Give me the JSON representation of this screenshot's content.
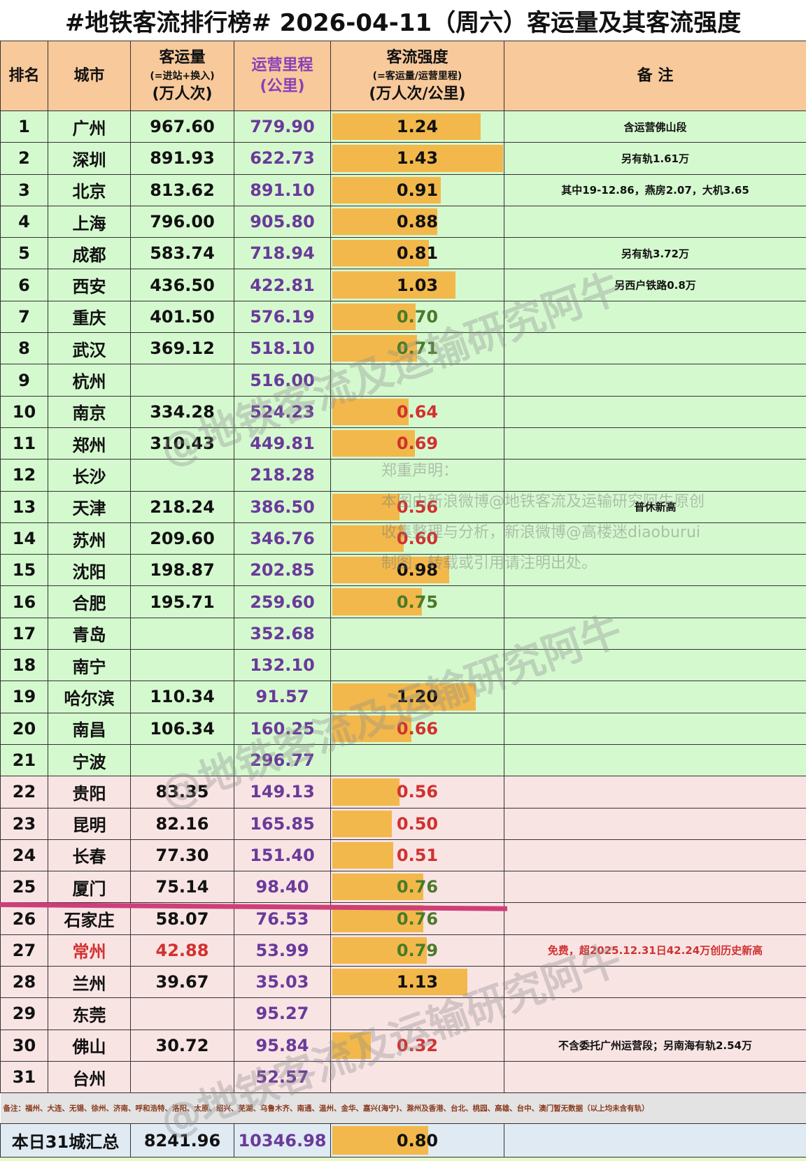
{
  "title": "#地铁客流排行榜# 2026-04-11（周六）客运量及其客流强度",
  "headers": {
    "rank": "排名",
    "city": "城市",
    "volume_main": "客运量",
    "volume_sub": "(=进站+换入)",
    "volume_unit": "(万人次)",
    "length_main": "运营里程",
    "length_unit": "(公里)",
    "intensity_main": "客流强度",
    "intensity_sub": "(=客运量/运营里程)",
    "intensity_unit": "(万人次/公里)",
    "note": "备  注"
  },
  "rows": [
    {
      "rank": "1",
      "city": "广州",
      "volume": "967.60",
      "length": "779.90",
      "intensity": "1.24",
      "intensity_color": "black",
      "note": "含运营佛山段",
      "group": "green"
    },
    {
      "rank": "2",
      "city": "深圳",
      "volume": "891.93",
      "length": "622.73",
      "intensity": "1.43",
      "intensity_color": "black",
      "note": "另有轨1.61万",
      "group": "green"
    },
    {
      "rank": "3",
      "city": "北京",
      "volume": "813.62",
      "length": "891.10",
      "intensity": "0.91",
      "intensity_color": "black",
      "note": "其中19-12.86，燕房2.07，大机3.65",
      "group": "green"
    },
    {
      "rank": "4",
      "city": "上海",
      "volume": "796.00",
      "length": "905.80",
      "intensity": "0.88",
      "intensity_color": "black",
      "note": "",
      "group": "green"
    },
    {
      "rank": "5",
      "city": "成都",
      "volume": "583.74",
      "length": "718.94",
      "intensity": "0.81",
      "intensity_color": "black",
      "note": "另有轨3.72万",
      "group": "green"
    },
    {
      "rank": "6",
      "city": "西安",
      "volume": "436.50",
      "length": "422.81",
      "intensity": "1.03",
      "intensity_color": "black",
      "note": "另西户铁路0.8万",
      "group": "green"
    },
    {
      "rank": "7",
      "city": "重庆",
      "volume": "401.50",
      "length": "576.19",
      "intensity": "0.70",
      "intensity_color": "green",
      "note": "",
      "group": "green"
    },
    {
      "rank": "8",
      "city": "武汉",
      "volume": "369.12",
      "length": "518.10",
      "intensity": "0.71",
      "intensity_color": "green",
      "note": "",
      "group": "green"
    },
    {
      "rank": "9",
      "city": "杭州",
      "volume": "",
      "length": "516.00",
      "intensity": "",
      "intensity_color": "black",
      "note": "",
      "group": "green"
    },
    {
      "rank": "10",
      "city": "南京",
      "volume": "334.28",
      "length": "524.23",
      "intensity": "0.64",
      "intensity_color": "red",
      "note": "",
      "group": "green"
    },
    {
      "rank": "11",
      "city": "郑州",
      "volume": "310.43",
      "length": "449.81",
      "intensity": "0.69",
      "intensity_color": "red",
      "note": "",
      "group": "green"
    },
    {
      "rank": "12",
      "city": "长沙",
      "volume": "",
      "length": "218.28",
      "intensity": "",
      "intensity_color": "black",
      "note": "",
      "group": "green"
    },
    {
      "rank": "13",
      "city": "天津",
      "volume": "218.24",
      "length": "386.50",
      "intensity": "0.56",
      "intensity_color": "red",
      "note": "普休新高",
      "group": "green"
    },
    {
      "rank": "14",
      "city": "苏州",
      "volume": "209.60",
      "length": "346.76",
      "intensity": "0.60",
      "intensity_color": "red",
      "note": "",
      "group": "green"
    },
    {
      "rank": "15",
      "city": "沈阳",
      "volume": "198.87",
      "length": "202.85",
      "intensity": "0.98",
      "intensity_color": "black",
      "note": "",
      "group": "green"
    },
    {
      "rank": "16",
      "city": "合肥",
      "volume": "195.71",
      "length": "259.60",
      "intensity": "0.75",
      "intensity_color": "green",
      "note": "",
      "group": "green"
    },
    {
      "rank": "17",
      "city": "青岛",
      "volume": "",
      "length": "352.68",
      "intensity": "",
      "intensity_color": "black",
      "note": "",
      "group": "green"
    },
    {
      "rank": "18",
      "city": "南宁",
      "volume": "",
      "length": "132.10",
      "intensity": "",
      "intensity_color": "black",
      "note": "",
      "group": "green"
    },
    {
      "rank": "19",
      "city": "哈尔滨",
      "volume": "110.34",
      "length": "91.57",
      "intensity": "1.20",
      "intensity_color": "black",
      "note": "",
      "group": "green"
    },
    {
      "rank": "20",
      "city": "南昌",
      "volume": "106.34",
      "length": "160.25",
      "intensity": "0.66",
      "intensity_color": "red",
      "note": "",
      "group": "green"
    },
    {
      "rank": "21",
      "city": "宁波",
      "volume": "",
      "length": "296.77",
      "intensity": "",
      "intensity_color": "black",
      "note": "",
      "group": "green"
    },
    {
      "rank": "22",
      "city": "贵阳",
      "volume": "83.35",
      "length": "149.13",
      "intensity": "0.56",
      "intensity_color": "red",
      "note": "",
      "group": "pink"
    },
    {
      "rank": "23",
      "city": "昆明",
      "volume": "82.16",
      "length": "165.85",
      "intensity": "0.50",
      "intensity_color": "red",
      "note": "",
      "group": "pink"
    },
    {
      "rank": "24",
      "city": "长春",
      "volume": "77.30",
      "length": "151.40",
      "intensity": "0.51",
      "intensity_color": "red",
      "note": "",
      "group": "pink"
    },
    {
      "rank": "25",
      "city": "厦门",
      "volume": "75.14",
      "length": "98.40",
      "intensity": "0.76",
      "intensity_color": "green",
      "note": "",
      "group": "pink"
    },
    {
      "rank": "26",
      "city": "石家庄",
      "volume": "58.07",
      "length": "76.53",
      "intensity": "0.76",
      "intensity_color": "green",
      "note": "",
      "group": "pink"
    },
    {
      "rank": "27",
      "city": "常州",
      "volume": "42.88",
      "length": "53.99",
      "intensity": "0.79",
      "intensity_color": "green",
      "note": "免费，超2025.12.31日42.24万创历史新高",
      "group": "pink",
      "highlight": "red"
    },
    {
      "rank": "28",
      "city": "兰州",
      "volume": "39.67",
      "length": "35.03",
      "intensity": "1.13",
      "intensity_color": "black",
      "note": "",
      "group": "pink"
    },
    {
      "rank": "29",
      "city": "东莞",
      "volume": "",
      "length": "95.27",
      "intensity": "",
      "intensity_color": "black",
      "note": "",
      "group": "pink"
    },
    {
      "rank": "30",
      "city": "佛山",
      "volume": "30.72",
      "length": "95.84",
      "intensity": "0.32",
      "intensity_color": "red",
      "note": "不含委托广州运营段；另南海有轨2.54万",
      "group": "pink"
    },
    {
      "rank": "31",
      "city": "台州",
      "volume": "",
      "length": "52.57",
      "intensity": "",
      "intensity_color": "black",
      "note": "",
      "group": "pink"
    }
  ],
  "footnote": "备注：福州、大连、无锡、徐州、济南、呼和浩特、洛阳、太原、绍兴、芜湖、乌鲁木齐、南通、温州、金华、嘉兴(海宁)、滁州及香港、台北、桃园、高雄、台中、澳门暂无数据（以上均未含有轨）",
  "summary": {
    "label": "本日31城汇总",
    "volume": "8241.96",
    "length": "10346.98",
    "intensity": "0.80"
  },
  "watermark": {
    "text": "@地铁客流及运输研究阿牛",
    "disclaimer_lines": [
      "郑重声明：",
      "本图由新浪微博@地铁客流及运输研究阿牛原创",
      "收集整理与分析，新浪微博@高楼迷diaoburui",
      "制图，转载或引用请注明出处。"
    ]
  },
  "colors": {
    "header_bg": "#f7c99b",
    "green_row_bg": "#d5f9cf",
    "pink_row_bg": "#f9e4e4",
    "bar": "#f2b84b",
    "length_text": "#6a3a9a",
    "red_text": "#d0322f",
    "green_text": "#4a7a2a",
    "cut_line": "#cf3f77",
    "summary_bg": "#dfeaf3"
  },
  "chart_data": {
    "type": "table",
    "title": "#地铁客流排行榜# 2026-04-11（周六）客运量及其客流强度",
    "columns": [
      "排名",
      "城市",
      "客运量(万人次)",
      "运营里程(公里)",
      "客流强度(万人次/公里)",
      "备注"
    ],
    "bar_column": "客流强度",
    "bar_scale_max": 1.43,
    "categories": [
      "广州",
      "深圳",
      "北京",
      "上海",
      "成都",
      "西安",
      "重庆",
      "武汉",
      "杭州",
      "南京",
      "郑州",
      "长沙",
      "天津",
      "苏州",
      "沈阳",
      "合肥",
      "青岛",
      "南宁",
      "哈尔滨",
      "南昌",
      "宁波",
      "贵阳",
      "昆明",
      "长春",
      "厦门",
      "石家庄",
      "常州",
      "兰州",
      "东莞",
      "佛山",
      "台州"
    ],
    "series": [
      {
        "name": "客运量(万人次)",
        "values": [
          967.6,
          891.93,
          813.62,
          796.0,
          583.74,
          436.5,
          401.5,
          369.12,
          null,
          334.28,
          310.43,
          null,
          218.24,
          209.6,
          198.87,
          195.71,
          null,
          null,
          110.34,
          106.34,
          null,
          83.35,
          82.16,
          77.3,
          75.14,
          58.07,
          42.88,
          39.67,
          null,
          30.72,
          null
        ]
      },
      {
        "name": "运营里程(公里)",
        "values": [
          779.9,
          622.73,
          891.1,
          905.8,
          718.94,
          422.81,
          576.19,
          518.1,
          516.0,
          524.23,
          449.81,
          218.28,
          386.5,
          346.76,
          202.85,
          259.6,
          352.68,
          132.1,
          91.57,
          160.25,
          296.77,
          149.13,
          165.85,
          151.4,
          98.4,
          76.53,
          53.99,
          35.03,
          95.27,
          95.84,
          52.57
        ]
      },
      {
        "name": "客流强度(万人次/公里)",
        "values": [
          1.24,
          1.43,
          0.91,
          0.88,
          0.81,
          1.03,
          0.7,
          0.71,
          null,
          0.64,
          0.69,
          null,
          0.56,
          0.6,
          0.98,
          0.75,
          null,
          null,
          1.2,
          0.66,
          null,
          0.56,
          0.5,
          0.51,
          0.76,
          0.76,
          0.79,
          1.13,
          null,
          0.32,
          null
        ]
      }
    ],
    "totals": {
      "客运量": 8241.96,
      "运营里程": 10346.98,
      "客流强度": 0.8
    }
  }
}
